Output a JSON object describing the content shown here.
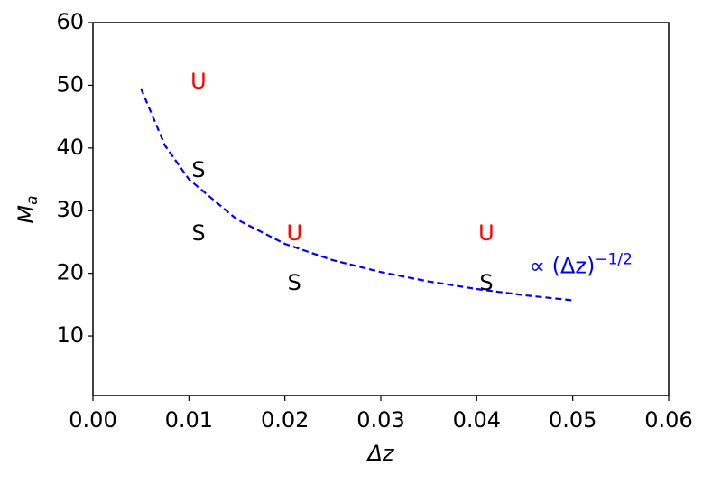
{
  "chart_data": {
    "type": "scatter",
    "xlabel": "Δz",
    "ylabel": "M",
    "ylabel_sub": "a",
    "xlim": [
      0,
      0.06
    ],
    "xticks": [
      {
        "value": 0,
        "label": "0.00"
      },
      {
        "value": 0.01,
        "label": "0.01"
      },
      {
        "value": 0.02,
        "label": "0.02"
      },
      {
        "value": 0.03,
        "label": "0.03"
      },
      {
        "value": 0.04,
        "label": "0.04"
      },
      {
        "value": 0.05,
        "label": "0.05"
      },
      {
        "value": 0.06,
        "label": "0.06"
      }
    ],
    "ylim": [
      0.5,
      60
    ],
    "yticks": [
      10,
      20,
      30,
      40,
      50,
      60
    ],
    "series": [
      {
        "marker_text": "S",
        "color": "#000000",
        "x": [
          0.011,
          0.011,
          0.021,
          0.041
        ],
        "y": [
          36.4,
          26.3,
          18.4,
          18.4
        ]
      },
      {
        "marker_text": "U",
        "color": "#ff0000",
        "x": [
          0.011,
          0.021,
          0.041
        ],
        "y": [
          50.5,
          26.3,
          26.3
        ]
      },
      {
        "kind": "line",
        "dash": true,
        "color": "#0000ff",
        "x": [
          0.005,
          0.0075,
          0.01,
          0.015,
          0.02,
          0.025,
          0.03,
          0.035,
          0.04,
          0.045,
          0.05
        ],
        "y": [
          49.5,
          40.4,
          35.0,
          28.6,
          24.7,
          22.1,
          20.2,
          18.7,
          17.5,
          16.5,
          15.7
        ]
      }
    ],
    "annotation": {
      "text": "∝ (Δz)",
      "superscript": "−1/2",
      "color": "#0000ff",
      "x": 0.0455,
      "y": 21
    }
  }
}
